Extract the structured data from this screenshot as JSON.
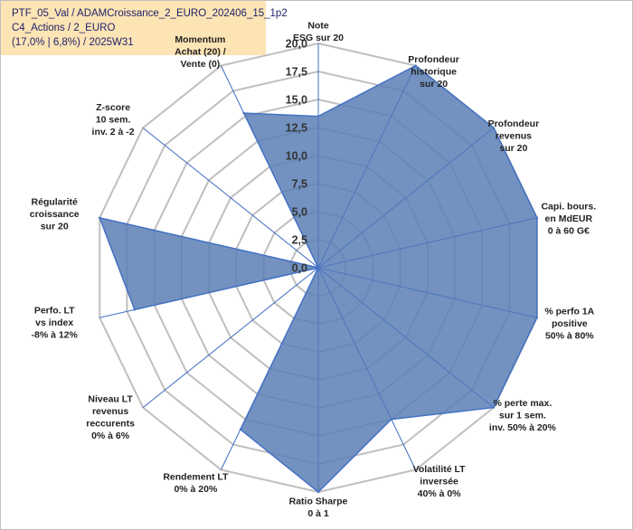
{
  "header": {
    "line1": "PTF_05_Val / ADAMCroissance_2_EURO_202406_15_1p2",
    "line2": "C4_Actions / 2_EURO",
    "line3": "(17,0% | 6,8%) / 2025W31"
  },
  "chart_data": {
    "type": "radar",
    "r_range": [
      0,
      20
    ],
    "ticks": [
      "0,0",
      "2,5",
      "5,0",
      "7,5",
      "10,0",
      "12,5",
      "15,0",
      "17,5",
      "20,0"
    ],
    "tick_values": [
      0,
      2.5,
      5,
      7.5,
      10,
      12.5,
      15,
      17.5,
      20
    ],
    "fill_color": "#5b7fb5",
    "line_color": "#4472c4",
    "grid_color": "#bfbfbf",
    "axes": [
      {
        "label": [
          "Note",
          "ESG sur 20"
        ],
        "value": 13.5
      },
      {
        "label": [
          "Profondeur",
          "historique",
          "sur 20"
        ],
        "value": 20
      },
      {
        "label": [
          "Profondeur",
          "revenus",
          "sur 20"
        ],
        "value": 20
      },
      {
        "label": [
          "Capi. bours.",
          "en MdEUR",
          "0 à 60 G€"
        ],
        "value": 20
      },
      {
        "label": [
          "% perfo 1A",
          "positive",
          "50% à 80%"
        ],
        "value": 20
      },
      {
        "label": [
          "% perte max.",
          "sur 1 sem.",
          "inv. 50% à 20%"
        ],
        "value": 20
      },
      {
        "label": [
          "Volatilité LT",
          "inversée",
          "40% à 0%"
        ],
        "value": 15
      },
      {
        "label": [
          "Ratio Sharpe",
          "0 à 1"
        ],
        "value": 20
      },
      {
        "label": [
          "Rendement LT",
          "0% à 20%"
        ],
        "value": 16
      },
      {
        "label": [
          "Niveau LT",
          "revenus",
          "reccurents",
          "0% à 6%"
        ],
        "value": 0
      },
      {
        "label": [
          "Perfo. LT",
          "vs index",
          "-8% à 12%"
        ],
        "value": 16.8
      },
      {
        "label": [
          "Régularité",
          "croissance",
          "sur 20"
        ],
        "value": 20
      },
      {
        "label": [
          "Z-score",
          "10 sem.",
          "inv. 2 à -2"
        ],
        "value": 0
      },
      {
        "label": [
          "Momentum",
          "Achat (20) /",
          "Vente (0)"
        ],
        "value": 15.3
      }
    ]
  }
}
